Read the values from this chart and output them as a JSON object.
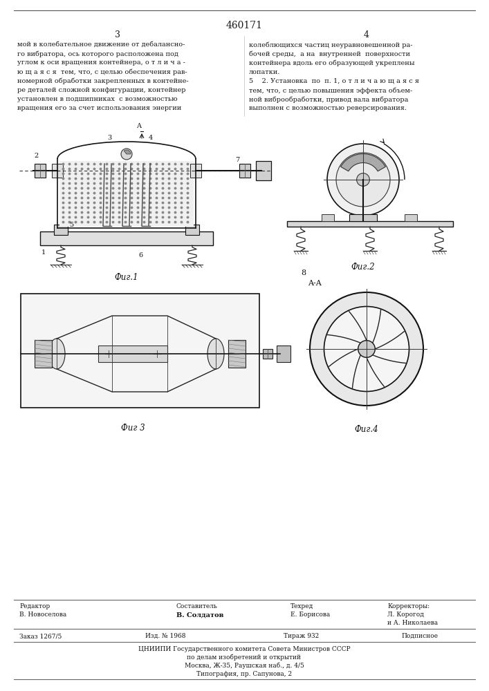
{
  "title": "460171",
  "page_numbers": [
    "3",
    "4"
  ],
  "bg_color": "#ffffff",
  "text_color": "#1a1a1a",
  "left_col_text": [
    "мой в колебательное движение от дебалансно-",
    "го вибратора, ось которого расположена под",
    "углом к оси вращения контейнера, о т л и ч а -",
    "ю щ а я с я  тем, что, с целью обеспечения рав-",
    "номерной обработки закрепленных в контейне-",
    "ре деталей сложной конфигурации, контейнер",
    "установлен в подшипниках  с возможностью",
    "вращения его за счет использования энергии"
  ],
  "right_col_text": [
    "колеблющихся частиц неуравновешенной ра-",
    "бочей среды,  а на  внутренней  поверхности",
    "контейнера вдоль его образующей укреплены",
    "лопатки.",
    "5    2. Установка  по  п. 1, о т л и ч а ю щ а я с я",
    "тем, что, с целью повышения эффекта объем-",
    "ной виброобработки, привод вала вибратора",
    "выполнен с возможностью реверсирования."
  ],
  "fig1_label": "Фиг.1",
  "fig2_label": "Фиг.2",
  "fig3_label": "Фиг 3",
  "fig4_label": "Фиг.4",
  "footer_col1_label": "Редактор",
  "footer_col1_name": "В. Новоселова",
  "footer_col2_label": "Составитель",
  "footer_col2_name": "В. Солдатов",
  "footer_col3_label": "Техред",
  "footer_col3_name": "Е. Борисова",
  "footer_col4_label": "Корректоры:",
  "footer_col4_name": "Л. Корогод",
  "footer_col4_name2": "и А. Николаева",
  "footer_order": "Заказ 1267/5",
  "footer_izd": "Изд. № 1968",
  "footer_tirazh": "Тираж 932",
  "footer_podp": "Подписное",
  "footer_cniip": "ЦНИИПИ Государственного комитета Совета Министров СССР",
  "footer_po_delam": "по делам изобретений и открытий",
  "footer_addr": "Москва, Ж-35, Раушская наб., д. 4/5",
  "footer_tip": "Типография, пр. Сапунова, 2"
}
